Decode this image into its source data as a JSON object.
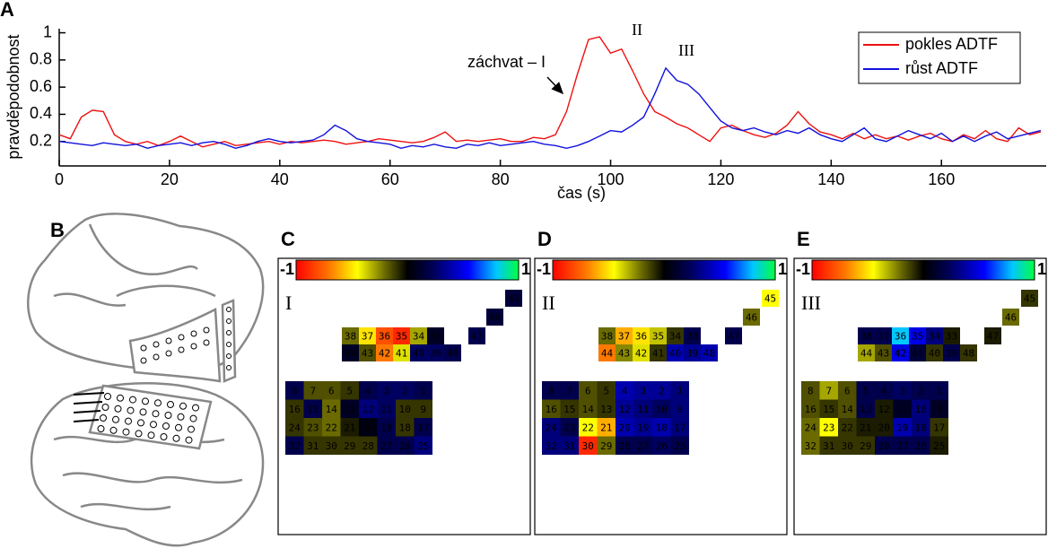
{
  "chart_data": [
    {
      "type": "line",
      "panel_label": "A",
      "xlabel": "čas (s)",
      "ylabel": "pravděpodobnost",
      "x": [
        0,
        2,
        4,
        6,
        8,
        10,
        12,
        14,
        16,
        18,
        20,
        22,
        24,
        26,
        28,
        30,
        32,
        34,
        36,
        38,
        40,
        42,
        44,
        46,
        48,
        50,
        52,
        54,
        56,
        58,
        60,
        62,
        64,
        66,
        68,
        70,
        72,
        74,
        76,
        78,
        80,
        82,
        84,
        86,
        88,
        90,
        92,
        94,
        96,
        98,
        100,
        102,
        104,
        106,
        108,
        110,
        112,
        114,
        116,
        118,
        120,
        122,
        124,
        126,
        128,
        130,
        132,
        134,
        136,
        138,
        140,
        142,
        144,
        146,
        148,
        150,
        152,
        154,
        156,
        158,
        160,
        162,
        164,
        166,
        168,
        170,
        172,
        174,
        176,
        178
      ],
      "series": [
        {
          "name": "pokles ADTF",
          "color": "#ee1111",
          "values": [
            0.25,
            0.22,
            0.38,
            0.43,
            0.42,
            0.25,
            0.2,
            0.18,
            0.2,
            0.17,
            0.2,
            0.24,
            0.2,
            0.16,
            0.18,
            0.2,
            0.17,
            0.18,
            0.19,
            0.2,
            0.18,
            0.2,
            0.19,
            0.2,
            0.21,
            0.2,
            0.18,
            0.19,
            0.2,
            0.22,
            0.21,
            0.2,
            0.19,
            0.2,
            0.23,
            0.27,
            0.2,
            0.21,
            0.2,
            0.21,
            0.22,
            0.2,
            0.2,
            0.23,
            0.22,
            0.25,
            0.42,
            0.7,
            0.95,
            0.97,
            0.85,
            0.88,
            0.72,
            0.55,
            0.42,
            0.38,
            0.33,
            0.3,
            0.25,
            0.2,
            0.3,
            0.32,
            0.28,
            0.25,
            0.23,
            0.26,
            0.32,
            0.42,
            0.33,
            0.27,
            0.25,
            0.22,
            0.26,
            0.22,
            0.25,
            0.22,
            0.24,
            0.21,
            0.24,
            0.26,
            0.22,
            0.2,
            0.25,
            0.22,
            0.28,
            0.22,
            0.2,
            0.3,
            0.25,
            0.27
          ]
        },
        {
          "name": "růst ADTF",
          "color": "#1111dd",
          "values": [
            0.2,
            0.19,
            0.18,
            0.17,
            0.19,
            0.18,
            0.17,
            0.18,
            0.15,
            0.17,
            0.18,
            0.19,
            0.17,
            0.19,
            0.2,
            0.18,
            0.15,
            0.17,
            0.2,
            0.22,
            0.2,
            0.19,
            0.2,
            0.21,
            0.25,
            0.32,
            0.28,
            0.22,
            0.2,
            0.19,
            0.18,
            0.15,
            0.17,
            0.16,
            0.18,
            0.16,
            0.15,
            0.18,
            0.17,
            0.19,
            0.17,
            0.18,
            0.19,
            0.2,
            0.18,
            0.17,
            0.15,
            0.17,
            0.2,
            0.24,
            0.28,
            0.27,
            0.32,
            0.38,
            0.55,
            0.74,
            0.65,
            0.62,
            0.55,
            0.45,
            0.35,
            0.3,
            0.28,
            0.3,
            0.27,
            0.25,
            0.28,
            0.26,
            0.3,
            0.25,
            0.22,
            0.2,
            0.25,
            0.3,
            0.22,
            0.2,
            0.24,
            0.28,
            0.25,
            0.22,
            0.26,
            0.2,
            0.24,
            0.2,
            0.24,
            0.27,
            0.22,
            0.24,
            0.26,
            0.28
          ]
        }
      ],
      "xlim": [
        0,
        179
      ],
      "ylim": [
        0.02,
        1.03
      ],
      "xticks": [
        0,
        20,
        40,
        60,
        80,
        100,
        120,
        140,
        160
      ],
      "yticks": [
        0.2,
        0.4,
        0.6,
        0.8,
        1
      ],
      "legend": "upper right",
      "annotations": [
        "záchvat – I",
        "II",
        "III"
      ]
    },
    {
      "type": "heatmap",
      "panel_label": "C",
      "title": "I",
      "clim": [
        -1,
        1
      ],
      "cells": [
        {
          "label": 8,
          "value": 0.2
        },
        {
          "label": 7,
          "value": -0.15
        },
        {
          "label": 6,
          "value": -0.15
        },
        {
          "label": 5,
          "value": -0.1
        },
        {
          "label": 4,
          "value": 0.2
        },
        {
          "label": 3,
          "value": 0.25
        },
        {
          "label": 2,
          "value": 0.25
        },
        {
          "label": 1,
          "value": 0.2
        },
        {
          "label": 16,
          "value": -0.1
        },
        {
          "label": 15,
          "value": 0.2
        },
        {
          "label": 14,
          "value": -0.2
        },
        {
          "label": 13,
          "value": 0.1
        },
        {
          "label": 12,
          "value": 0.3
        },
        {
          "label": 11,
          "value": 0.25
        },
        {
          "label": 10,
          "value": -0.1
        },
        {
          "label": 9,
          "value": -0.1
        },
        {
          "label": 24,
          "value": -0.1
        },
        {
          "label": 23,
          "value": -0.15
        },
        {
          "label": 22,
          "value": -0.2
        },
        {
          "label": 21,
          "value": -0.05
        },
        {
          "label": 20,
          "value": 0.05
        },
        {
          "label": 19,
          "value": 0.2
        },
        {
          "label": 18,
          "value": -0.1
        },
        {
          "label": 17,
          "value": 0.2
        },
        {
          "label": 32,
          "value": 0.2
        },
        {
          "label": 31,
          "value": -0.1
        },
        {
          "label": 30,
          "value": -0.1
        },
        {
          "label": 29,
          "value": -0.1
        },
        {
          "label": 28,
          "value": -0.1
        },
        {
          "label": 27,
          "value": 0.2
        },
        {
          "label": 26,
          "value": 0.2
        },
        {
          "label": 25,
          "value": 0.3
        },
        {
          "label": 38,
          "value": -0.2
        },
        {
          "label": 37,
          "value": -0.5
        },
        {
          "label": 36,
          "value": -0.8
        },
        {
          "label": 35,
          "value": -0.9
        },
        {
          "label": 34,
          "value": -0.3
        },
        {
          "label": 33,
          "value": 0.1
        },
        {
          "label": 44,
          "value": 0.1
        },
        {
          "label": 43,
          "value": -0.15
        },
        {
          "label": 42,
          "value": -0.7
        },
        {
          "label": 41,
          "value": -0.4
        },
        {
          "label": 40,
          "value": 0.25
        },
        {
          "label": 39,
          "value": 0.25
        },
        {
          "label": 48,
          "value": 0.2
        },
        {
          "label": 47,
          "value": 0.2
        },
        {
          "label": 46,
          "value": 0.15
        },
        {
          "label": 45,
          "value": 0.15
        }
      ]
    },
    {
      "type": "heatmap",
      "panel_label": "D",
      "title": "II",
      "clim": [
        -1,
        1
      ],
      "cells": [
        {
          "label": 8,
          "value": 0.2
        },
        {
          "label": 7,
          "value": 0.2
        },
        {
          "label": 6,
          "value": -0.15
        },
        {
          "label": 5,
          "value": -0.1
        },
        {
          "label": 4,
          "value": 0.4
        },
        {
          "label": 3,
          "value": 0.35
        },
        {
          "label": 2,
          "value": 0.35
        },
        {
          "label": 1,
          "value": 0.3
        },
        {
          "label": 16,
          "value": -0.15
        },
        {
          "label": 15,
          "value": -0.1
        },
        {
          "label": 14,
          "value": -0.15
        },
        {
          "label": 13,
          "value": -0.1
        },
        {
          "label": 12,
          "value": 0.35
        },
        {
          "label": 11,
          "value": 0.3
        },
        {
          "label": 10,
          "value": 0.25
        },
        {
          "label": 9,
          "value": 0.3
        },
        {
          "label": 24,
          "value": 0.3
        },
        {
          "label": 23,
          "value": 0.2
        },
        {
          "label": 22,
          "value": -0.45
        },
        {
          "label": 21,
          "value": -0.6
        },
        {
          "label": 20,
          "value": 0.4
        },
        {
          "label": 19,
          "value": 0.35
        },
        {
          "label": 18,
          "value": 0.4
        },
        {
          "label": 17,
          "value": 0.3
        },
        {
          "label": 32,
          "value": 0.3
        },
        {
          "label": 31,
          "value": 0.3
        },
        {
          "label": 30,
          "value": -0.9
        },
        {
          "label": 29,
          "value": -0.2
        },
        {
          "label": 28,
          "value": 0.2
        },
        {
          "label": 27,
          "value": 0.2
        },
        {
          "label": 26,
          "value": 0.25
        },
        {
          "label": 25,
          "value": 0.2
        },
        {
          "label": 38,
          "value": -0.2
        },
        {
          "label": 37,
          "value": -0.6
        },
        {
          "label": 36,
          "value": -0.5
        },
        {
          "label": 35,
          "value": -0.35
        },
        {
          "label": 34,
          "value": -0.1
        },
        {
          "label": 33,
          "value": 0.2
        },
        {
          "label": 44,
          "value": -0.7
        },
        {
          "label": 43,
          "value": -0.25
        },
        {
          "label": 42,
          "value": -0.4
        },
        {
          "label": 41,
          "value": -0.1
        },
        {
          "label": 40,
          "value": 0.4
        },
        {
          "label": 39,
          "value": 0.35
        },
        {
          "label": 48,
          "value": 0.4
        },
        {
          "label": 47,
          "value": 0.2
        },
        {
          "label": 46,
          "value": -0.2
        },
        {
          "label": 45,
          "value": -0.45
        }
      ]
    },
    {
      "type": "heatmap",
      "panel_label": "E",
      "title": "III",
      "clim": [
        -1,
        1
      ],
      "cells": [
        {
          "label": 8,
          "value": -0.15
        },
        {
          "label": 7,
          "value": -0.3
        },
        {
          "label": 6,
          "value": -0.15
        },
        {
          "label": 5,
          "value": 0.2
        },
        {
          "label": 4,
          "value": 0.2
        },
        {
          "label": 3,
          "value": 0.25
        },
        {
          "label": 2,
          "value": 0.2
        },
        {
          "label": 1,
          "value": 0.2
        },
        {
          "label": 16,
          "value": -0.15
        },
        {
          "label": 15,
          "value": -0.1
        },
        {
          "label": 14,
          "value": -0.15
        },
        {
          "label": 13,
          "value": 0.2
        },
        {
          "label": 12,
          "value": -0.05
        },
        {
          "label": 11,
          "value": 0.1
        },
        {
          "label": 10,
          "value": 0.3
        },
        {
          "label": 9,
          "value": 0.1
        },
        {
          "label": 24,
          "value": -0.2
        },
        {
          "label": 23,
          "value": -0.45
        },
        {
          "label": 22,
          "value": -0.1
        },
        {
          "label": 21,
          "value": -0.05
        },
        {
          "label": 20,
          "value": -0.05
        },
        {
          "label": 19,
          "value": 0.4
        },
        {
          "label": 18,
          "value": 0.3
        },
        {
          "label": 17,
          "value": -0.1
        },
        {
          "label": 32,
          "value": -0.2
        },
        {
          "label": 31,
          "value": -0.1
        },
        {
          "label": 30,
          "value": -0.1
        },
        {
          "label": 29,
          "value": -0.1
        },
        {
          "label": 28,
          "value": 0.2
        },
        {
          "label": 27,
          "value": 0.2
        },
        {
          "label": 26,
          "value": 0.2
        },
        {
          "label": 25,
          "value": -0.05
        },
        {
          "label": 38,
          "value": 0.2
        },
        {
          "label": 37,
          "value": 0.2
        },
        {
          "label": 36,
          "value": 0.8
        },
        {
          "label": 35,
          "value": 0.5
        },
        {
          "label": 34,
          "value": 0.3
        },
        {
          "label": 33,
          "value": -0.05
        },
        {
          "label": 44,
          "value": -0.3
        },
        {
          "label": 43,
          "value": -0.15
        },
        {
          "label": 42,
          "value": 0.5
        },
        {
          "label": 41,
          "value": 0.15
        },
        {
          "label": 40,
          "value": -0.1
        },
        {
          "label": 39,
          "value": 0.2
        },
        {
          "label": 48,
          "value": -0.1
        },
        {
          "label": 47,
          "value": -0.05
        },
        {
          "label": 46,
          "value": -0.2
        },
        {
          "label": 45,
          "value": -0.1
        }
      ]
    }
  ],
  "brain_panel": {
    "label": "B"
  }
}
